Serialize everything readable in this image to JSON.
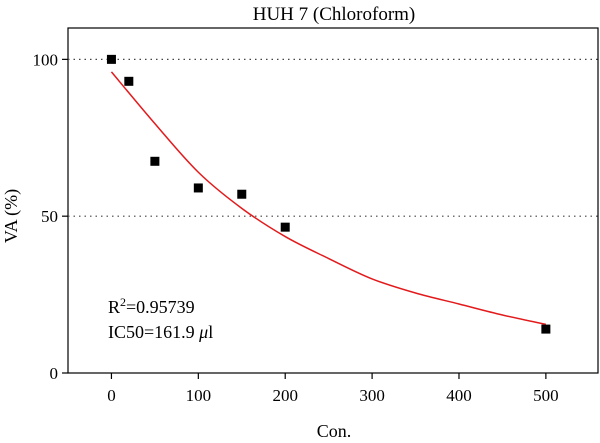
{
  "chart_data": {
    "type": "scatter",
    "title": "HUH 7 (Chloroform)",
    "xlabel": "Con.",
    "ylabel": "VA (%)",
    "xlim": [
      -50,
      560
    ],
    "ylim": [
      0,
      110
    ],
    "xticks": [
      0,
      100,
      200,
      300,
      400,
      500
    ],
    "yticks": [
      0,
      50,
      100
    ],
    "grid": {
      "horizontal_dotted_at": [
        50,
        100
      ]
    },
    "series": [
      {
        "type": "scatter",
        "marker": "square",
        "color": "#000000",
        "x": [
          0,
          20,
          50,
          100,
          150,
          200,
          500
        ],
        "y": [
          100,
          93,
          67.5,
          59,
          57,
          46.5,
          14
        ]
      },
      {
        "type": "line",
        "color": "#e31a1c",
        "x": [
          0,
          50,
          100,
          150,
          200,
          250,
          300,
          350,
          400,
          450,
          500
        ],
        "y": [
          96,
          79.5,
          64,
          52.5,
          43.5,
          36.5,
          30,
          25.5,
          22,
          18.5,
          15.5
        ]
      }
    ],
    "annotation": {
      "r2_base": "R",
      "r2_sup": "2",
      "r2_value": "=0.95739",
      "ic50_text": "IC50=161.9 ",
      "ic50_mu": "μ",
      "ic50_unit": "l"
    }
  }
}
